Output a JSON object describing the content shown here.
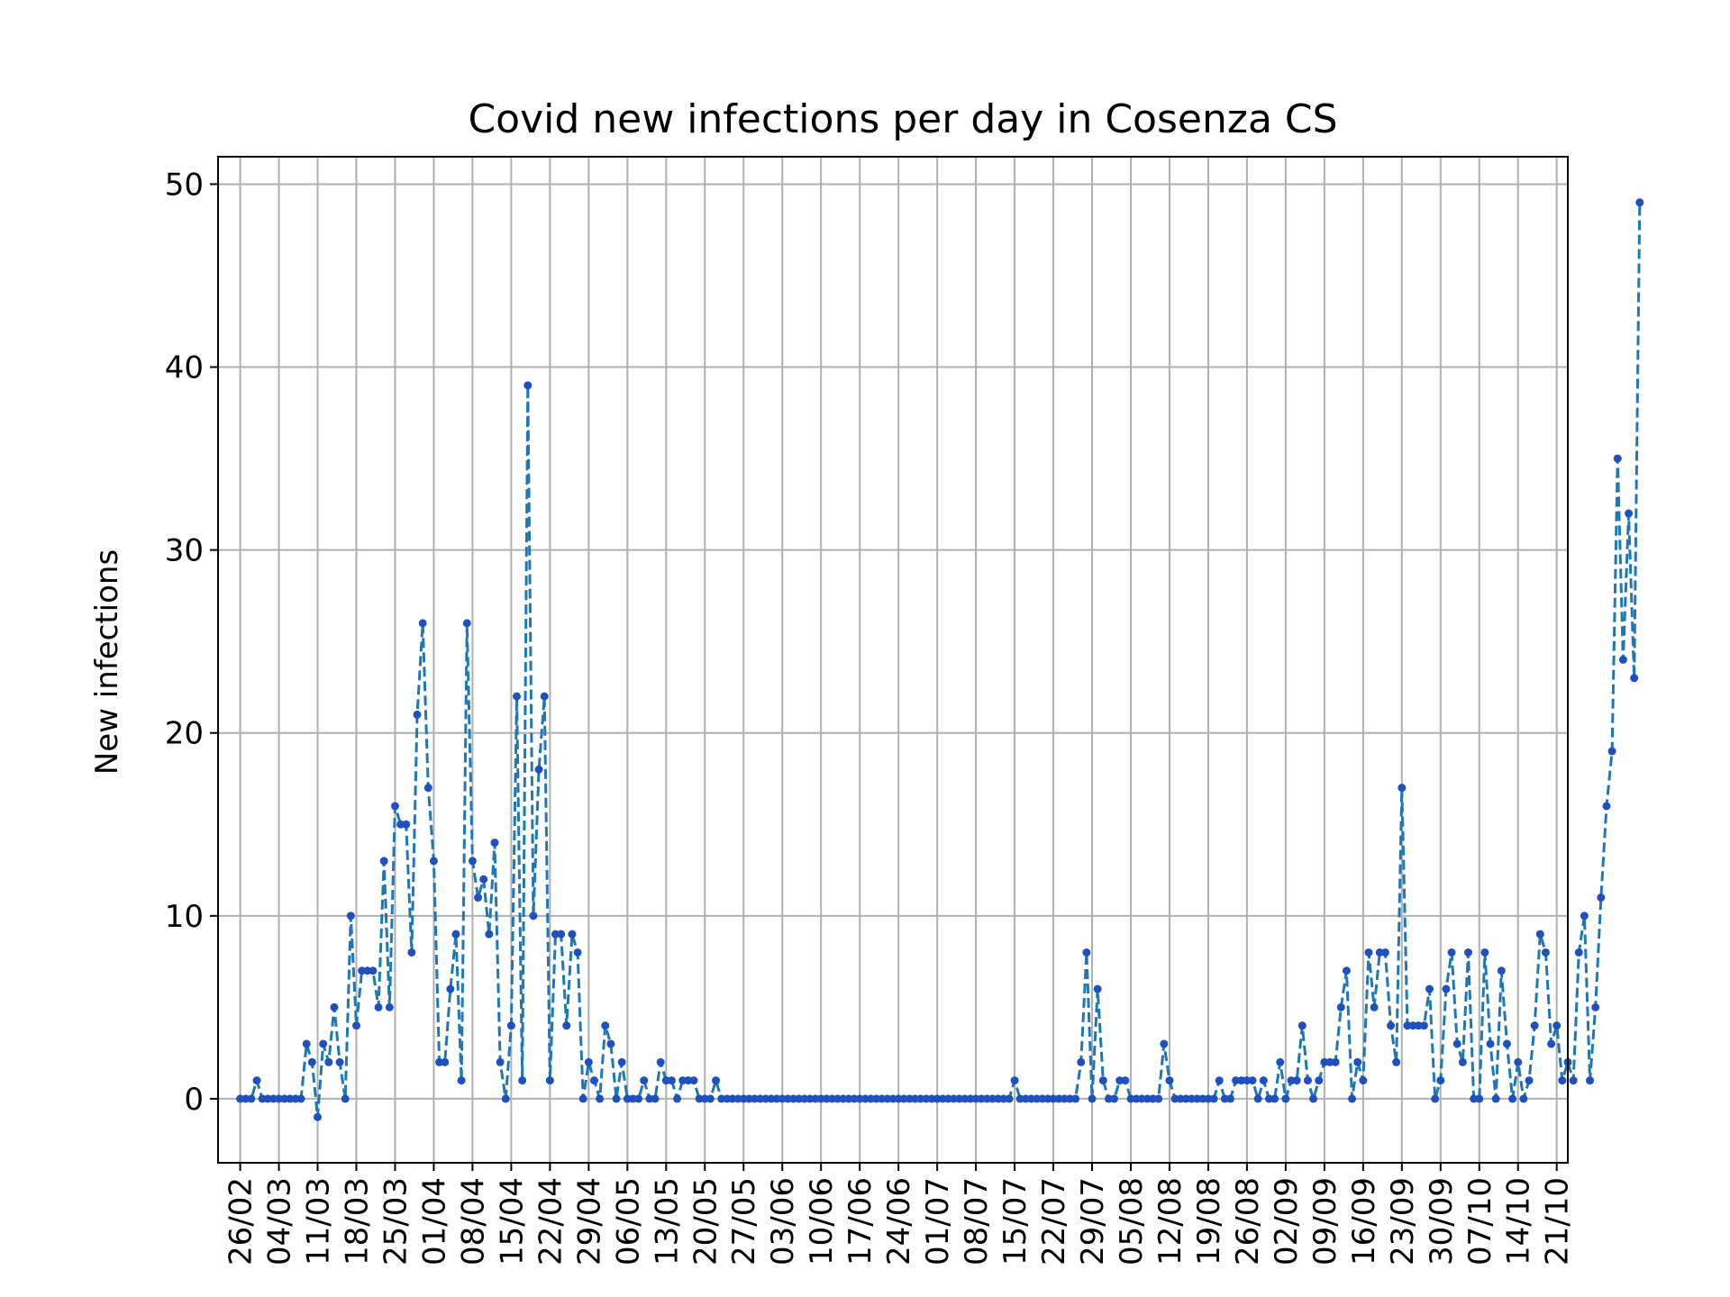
{
  "chart_data": {
    "type": "line",
    "title": "Covid new infections per day in Cosenza CS",
    "xlabel": "",
    "ylabel": "New infections",
    "ylim": [
      -3.5,
      51.5
    ],
    "yticks": [
      0,
      10,
      20,
      30,
      40,
      50
    ],
    "grid": true,
    "start_date": "2020-02-26",
    "xtick_labels": [
      "26/02",
      "04/03",
      "11/03",
      "18/03",
      "25/03",
      "01/04",
      "08/04",
      "15/04",
      "22/04",
      "29/04",
      "06/05",
      "13/05",
      "20/05",
      "27/05",
      "03/06",
      "10/06",
      "17/06",
      "24/06",
      "01/07",
      "08/07",
      "15/07",
      "22/07",
      "29/07",
      "05/08",
      "12/08",
      "19/08",
      "26/08",
      "02/09",
      "09/09",
      "16/09",
      "23/09",
      "30/09",
      "07/10",
      "14/10",
      "21/10"
    ],
    "line_color": "#1f77b4",
    "marker_color": "#1f50c0",
    "series": [
      {
        "values": [
          0,
          0,
          0,
          1,
          0,
          0,
          0,
          0,
          0,
          0,
          0,
          0,
          3,
          2,
          -1,
          3,
          2,
          5,
          2,
          0,
          10,
          4,
          7,
          7,
          7,
          5,
          13,
          5,
          16,
          15,
          15,
          8,
          21,
          26,
          17,
          13,
          2,
          2,
          6,
          9,
          1,
          26,
          13,
          11,
          12,
          9,
          14,
          2,
          0,
          4,
          22,
          1,
          39,
          10,
          18,
          22,
          1,
          9,
          9,
          4,
          9,
          8,
          0,
          2,
          1,
          0,
          4,
          3,
          0,
          2,
          0,
          0,
          0,
          1,
          0,
          0,
          2,
          1,
          1,
          0,
          1,
          1,
          1,
          0,
          0,
          0,
          1,
          0,
          0,
          0,
          0,
          0,
          0,
          0,
          0,
          0,
          0,
          0,
          0,
          0,
          0,
          0,
          0,
          0,
          0,
          0,
          0,
          0,
          0,
          0,
          0,
          0,
          0,
          0,
          0,
          0,
          0,
          0,
          0,
          0,
          0,
          0,
          0,
          0,
          0,
          0,
          0,
          0,
          0,
          0,
          0,
          0,
          0,
          0,
          0,
          0,
          0,
          0,
          0,
          0,
          1,
          0,
          0,
          0,
          0,
          0,
          0,
          0,
          0,
          0,
          0,
          0,
          2,
          8,
          0,
          6,
          1,
          0,
          0,
          1,
          1,
          0,
          0,
          0,
          0,
          0,
          0,
          3,
          1,
          0,
          0,
          0,
          0,
          0,
          0,
          0,
          0,
          1,
          0,
          0,
          1,
          1,
          1,
          1,
          0,
          1,
          0,
          0,
          2,
          0,
          1,
          1,
          4,
          1,
          0,
          1,
          2,
          2,
          2,
          5,
          7,
          0,
          2,
          1,
          8,
          5,
          8,
          8,
          4,
          2,
          17,
          4,
          4,
          4,
          4,
          6,
          0,
          1,
          6,
          8,
          3,
          2,
          8,
          0,
          0,
          8,
          3,
          0,
          7,
          3,
          0,
          2,
          0,
          1,
          4,
          9,
          8,
          3,
          4,
          1,
          2,
          1,
          8,
          10,
          1,
          5,
          11,
          16,
          19,
          35,
          24,
          32,
          23,
          49
        ]
      }
    ]
  }
}
